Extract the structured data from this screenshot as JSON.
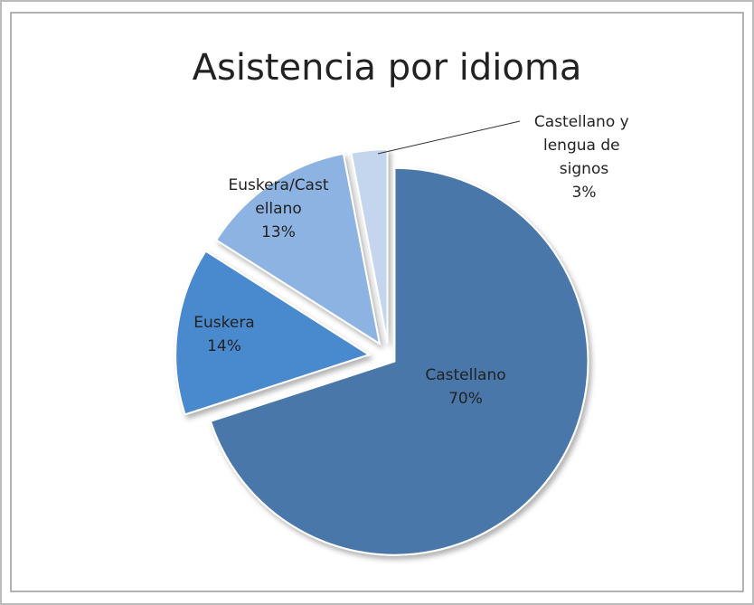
{
  "chart_data": {
    "type": "pie",
    "title": "Asistencia por idioma",
    "categories": [
      "Castellano",
      "Euskera",
      "Euskera/Castellano",
      "Castellano y lengua de signos"
    ],
    "values": [
      70,
      14,
      13,
      3
    ],
    "value_labels": [
      "70%",
      "14%",
      "13%",
      "3%"
    ],
    "colors": [
      "#4a77a9",
      "#4a89cd",
      "#8db3e2",
      "#c4d5ee"
    ]
  }
}
